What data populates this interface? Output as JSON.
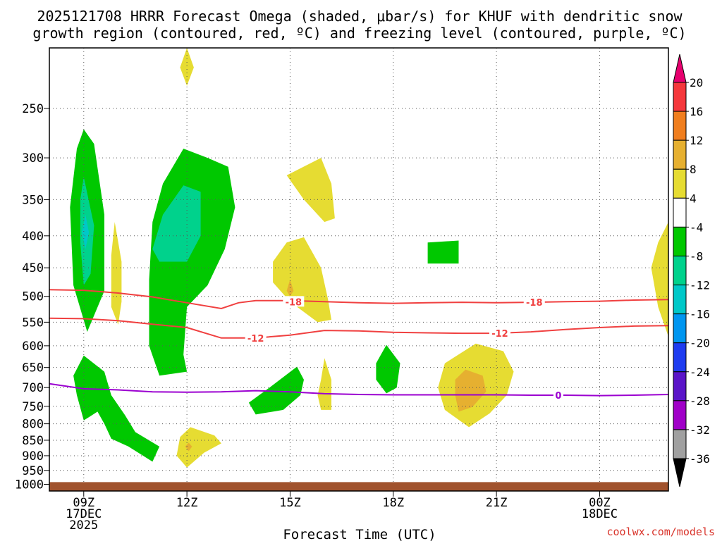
{
  "chart_data": {
    "type": "contour",
    "title_lines": [
      "2025121708 HRRR Forecast Omega (shaded, μbar/s) for KHUF with dendritic snow",
      "growth region (contoured, red, ºC) and freezing level (contoured, purple, ºC)"
    ],
    "xlabel": "Forecast Time (UTC)",
    "x_ticks": [
      {
        "hour": 9,
        "lines": [
          "09Z",
          "17DEC",
          "2025"
        ]
      },
      {
        "hour": 12,
        "lines": [
          "12Z"
        ]
      },
      {
        "hour": 15,
        "lines": [
          "15Z"
        ]
      },
      {
        "hour": 18,
        "lines": [
          "18Z"
        ]
      },
      {
        "hour": 21,
        "lines": [
          "21Z"
        ]
      },
      {
        "hour": 24,
        "lines": [
          "00Z",
          "18DEC"
        ]
      }
    ],
    "xlim_hours": [
      8,
      26
    ],
    "y_ticks": [
      250,
      300,
      350,
      400,
      450,
      500,
      550,
      600,
      650,
      700,
      750,
      800,
      850,
      900,
      950,
      1000
    ],
    "ylim_hpa": [
      200,
      1025
    ],
    "ground_top_hpa": 992,
    "colorbar": {
      "labels": [
        "20",
        "16",
        "12",
        "8",
        "4",
        "-4",
        "-8",
        "-12",
        "-16",
        "-20",
        "-24",
        "-28",
        "-32",
        "-36"
      ],
      "colors": [
        "#f5373b",
        "#f07e1e",
        "#e6b030",
        "#e6dc32",
        "#ffffff",
        "#00c800",
        "#00d28c",
        "#00c8c8",
        "#0096f0",
        "#1e3cf0",
        "#5a14c8",
        "#a000c8",
        "#a0a0a0"
      ],
      "top_arrow_color": "#e6006e",
      "bottom_arrow_color": "#000000"
    },
    "contours": [
      {
        "label": "-18",
        "color": "#f04040",
        "points": [
          [
            8,
            488
          ],
          [
            9,
            489
          ],
          [
            10,
            494
          ],
          [
            11,
            501
          ],
          [
            12,
            512
          ],
          [
            13,
            523
          ],
          [
            13.5,
            512
          ],
          [
            14,
            508
          ],
          [
            15,
            508
          ],
          [
            16,
            510
          ],
          [
            17,
            512
          ],
          [
            18,
            513
          ],
          [
            19,
            512
          ],
          [
            20,
            511
          ],
          [
            21,
            512
          ],
          [
            22,
            511
          ],
          [
            23,
            510
          ],
          [
            24,
            509
          ],
          [
            25,
            507
          ],
          [
            26,
            506
          ]
        ]
      },
      {
        "label": "-12",
        "color": "#f04040",
        "points": [
          [
            8,
            542
          ],
          [
            9,
            543
          ],
          [
            10,
            547
          ],
          [
            11,
            554
          ],
          [
            12,
            561
          ],
          [
            13,
            583
          ],
          [
            14,
            583
          ],
          [
            15,
            577
          ],
          [
            16,
            567
          ],
          [
            17,
            568
          ],
          [
            18,
            571
          ],
          [
            19,
            572
          ],
          [
            20,
            573
          ],
          [
            21,
            573
          ],
          [
            22,
            570
          ],
          [
            23,
            565
          ],
          [
            24,
            561
          ],
          [
            25,
            558
          ],
          [
            26,
            557
          ]
        ]
      },
      {
        "label": "0",
        "color": "#9b00d0",
        "points": [
          [
            8,
            690
          ],
          [
            9,
            703
          ],
          [
            10,
            706
          ],
          [
            11,
            711
          ],
          [
            12,
            712
          ],
          [
            13,
            711
          ],
          [
            14,
            708
          ],
          [
            15,
            711
          ],
          [
            16,
            716
          ],
          [
            17,
            718
          ],
          [
            18,
            719
          ],
          [
            19,
            719
          ],
          [
            20,
            719
          ],
          [
            21,
            719
          ],
          [
            22,
            720
          ],
          [
            23,
            720
          ],
          [
            24,
            721
          ],
          [
            25,
            720
          ],
          [
            26,
            718
          ]
        ]
      }
    ],
    "contour_label_positions": [
      {
        "label": "-18",
        "hour": 15.1,
        "p": 510
      },
      {
        "label": "-18",
        "hour": 22.1,
        "p": 511
      },
      {
        "label": "-12",
        "hour": 14.0,
        "p": 583
      },
      {
        "label": "-12",
        "hour": 21.1,
        "p": 573
      },
      {
        "label": "0",
        "hour": 22.8,
        "p": 720
      }
    ],
    "shaded_regions": [
      {
        "value": -6,
        "points": [
          [
            9.0,
            270
          ],
          [
            9.3,
            285
          ],
          [
            9.6,
            370
          ],
          [
            9.6,
            490
          ],
          [
            9.1,
            570
          ],
          [
            8.7,
            480
          ],
          [
            8.6,
            360
          ],
          [
            8.8,
            290
          ]
        ]
      },
      {
        "value": -10,
        "points": [
          [
            9.0,
            322
          ],
          [
            9.3,
            385
          ],
          [
            9.2,
            460
          ],
          [
            9.0,
            480
          ],
          [
            8.9,
            410
          ],
          [
            8.9,
            350
          ]
        ]
      },
      {
        "value": -14,
        "points": [
          [
            9.05,
            370
          ],
          [
            9.15,
            395
          ],
          [
            9.05,
            420
          ],
          [
            8.95,
            395
          ]
        ]
      },
      {
        "value": -6,
        "points": [
          [
            11.9,
            290
          ],
          [
            12.6,
            300
          ],
          [
            13.2,
            310
          ],
          [
            13.4,
            360
          ],
          [
            13.1,
            420
          ],
          [
            12.6,
            480
          ],
          [
            12.0,
            520
          ],
          [
            11.9,
            620
          ],
          [
            12.0,
            660
          ],
          [
            11.2,
            670
          ],
          [
            10.9,
            600
          ],
          [
            10.9,
            470
          ],
          [
            11.0,
            380
          ],
          [
            11.3,
            330
          ]
        ]
      },
      {
        "value": -10,
        "points": [
          [
            11.9,
            332
          ],
          [
            12.4,
            340
          ],
          [
            12.4,
            400
          ],
          [
            12.0,
            440
          ],
          [
            11.2,
            440
          ],
          [
            11.0,
            420
          ],
          [
            11.3,
            370
          ]
        ]
      },
      {
        "value": -6,
        "points": [
          [
            19.0,
            410
          ],
          [
            19.9,
            407
          ],
          [
            19.9,
            443
          ],
          [
            19.0,
            443
          ]
        ]
      },
      {
        "value": -6,
        "points": [
          [
            17.8,
            598
          ],
          [
            18.2,
            640
          ],
          [
            18.1,
            700
          ],
          [
            17.8,
            715
          ],
          [
            17.5,
            680
          ],
          [
            17.5,
            640
          ]
        ]
      },
      {
        "value": -6,
        "points": [
          [
            9.0,
            622
          ],
          [
            9.6,
            660
          ],
          [
            9.8,
            720
          ],
          [
            10.2,
            775
          ],
          [
            10.5,
            825
          ],
          [
            11.2,
            870
          ],
          [
            11.0,
            920
          ],
          [
            10.3,
            870
          ],
          [
            9.8,
            845
          ],
          [
            9.6,
            800
          ],
          [
            9.4,
            765
          ],
          [
            9.0,
            790
          ],
          [
            8.8,
            720
          ],
          [
            8.7,
            670
          ]
        ]
      },
      {
        "value": -6,
        "points": [
          [
            15.2,
            648
          ],
          [
            15.4,
            680
          ],
          [
            15.3,
            720
          ],
          [
            14.8,
            760
          ],
          [
            14.0,
            773
          ],
          [
            13.8,
            740
          ],
          [
            14.4,
            700
          ]
        ]
      },
      {
        "value": 6,
        "points": [
          [
            12.0,
            200
          ],
          [
            12.2,
            215
          ],
          [
            12.0,
            230
          ],
          [
            11.8,
            215
          ]
        ]
      },
      {
        "value": 6,
        "points": [
          [
            9.9,
            380
          ],
          [
            10.1,
            440
          ],
          [
            10.1,
            510
          ],
          [
            10.0,
            555
          ],
          [
            9.8,
            520
          ],
          [
            9.8,
            430
          ]
        ]
      },
      {
        "value": 6,
        "points": [
          [
            15.9,
            300
          ],
          [
            16.2,
            330
          ],
          [
            16.3,
            375
          ],
          [
            16.0,
            380
          ],
          [
            15.4,
            350
          ],
          [
            14.9,
            320
          ]
        ]
      },
      {
        "value": 6,
        "points": [
          [
            15.4,
            402
          ],
          [
            15.9,
            450
          ],
          [
            16.1,
            505
          ],
          [
            16.2,
            545
          ],
          [
            15.8,
            550
          ],
          [
            15.0,
            510
          ],
          [
            14.5,
            475
          ],
          [
            14.5,
            440
          ],
          [
            14.9,
            410
          ]
        ]
      },
      {
        "value": 10,
        "points": [
          [
            15.0,
            470
          ],
          [
            15.1,
            490
          ],
          [
            15.0,
            500
          ],
          [
            14.9,
            490
          ]
        ]
      },
      {
        "value": 6,
        "points": [
          [
            16.0,
            628
          ],
          [
            16.2,
            680
          ],
          [
            16.2,
            760
          ],
          [
            15.9,
            760
          ],
          [
            15.8,
            720
          ],
          [
            15.9,
            680
          ]
        ]
      },
      {
        "value": 6,
        "points": [
          [
            20.4,
            595
          ],
          [
            21.2,
            612
          ],
          [
            21.5,
            660
          ],
          [
            21.3,
            720
          ],
          [
            20.8,
            770
          ],
          [
            20.2,
            810
          ],
          [
            19.5,
            760
          ],
          [
            19.3,
            700
          ],
          [
            19.5,
            640
          ]
        ]
      },
      {
        "value": 10,
        "points": [
          [
            20.1,
            655
          ],
          [
            20.6,
            670
          ],
          [
            20.7,
            710
          ],
          [
            20.3,
            752
          ],
          [
            19.9,
            765
          ],
          [
            19.8,
            720
          ],
          [
            19.8,
            680
          ]
        ]
      },
      {
        "value": 6,
        "points": [
          [
            12.1,
            810
          ],
          [
            12.8,
            835
          ],
          [
            13.0,
            860
          ],
          [
            12.5,
            890
          ],
          [
            12.0,
            940
          ],
          [
            11.7,
            900
          ],
          [
            11.8,
            840
          ]
        ]
      },
      {
        "value": 10,
        "points": [
          [
            12.05,
            858
          ],
          [
            12.15,
            870
          ],
          [
            12.05,
            885
          ],
          [
            11.95,
            870
          ]
        ]
      },
      {
        "value": 6,
        "points": [
          [
            26.0,
            380
          ],
          [
            26.0,
            580
          ],
          [
            25.7,
            520
          ],
          [
            25.5,
            450
          ],
          [
            25.7,
            410
          ]
        ]
      }
    ],
    "credit": "coolwx.com/models"
  }
}
